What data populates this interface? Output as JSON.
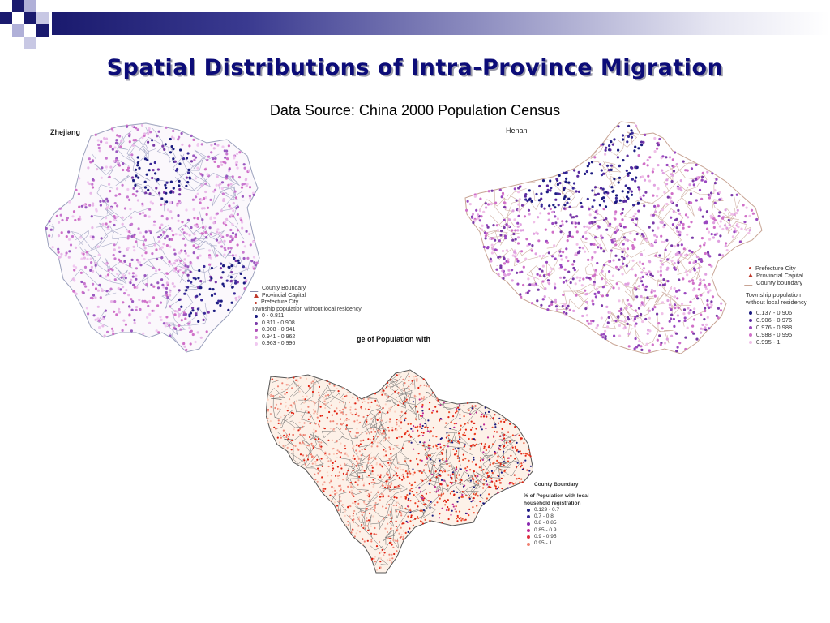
{
  "slide": {
    "title": "Spatial Distributions of Intra-Province Migration",
    "subtitle": "Data Source: China 2000 Population Census",
    "cut_title": "ge of Population with"
  },
  "colors": {
    "title": "#0c0c78",
    "deco_dark": "#1a1a6e",
    "deco_light": "#a8a8d0",
    "dot_dark": "#1b1b80",
    "dot_purple": "#7a3aa8",
    "dot_pink": "#d070c8",
    "dot_light": "#e8b8e8",
    "dot_red": "#e02010",
    "boundary_gray": "#9090b0",
    "boundary_tan": "#c89a88",
    "sichuan_fill": "#fdf1e8"
  },
  "maps": {
    "zhejiang": {
      "name": "Zhejiang",
      "legend": {
        "line_label": "County Boundary",
        "capital_label": "Provincial Capital",
        "city_label": "Prefecture City",
        "heading": "Township population without local residency",
        "classes": [
          "0 - 0.811",
          "0.811 - 0.908",
          "0.908 - 0.941",
          "0.941 - 0.962",
          "0.963 - 0.996"
        ]
      }
    },
    "henan": {
      "name": "Henan",
      "legend": {
        "city_label": "Prefecture City",
        "capital_label": "Provincial Capital",
        "line_label": "County boundary",
        "heading_1": "Township population",
        "heading_2": "without local residency",
        "classes": [
          "0.137 - 0.906",
          "0.906 - 0.976",
          "0.976 - 0.988",
          "0.988 - 0.995",
          "0.995 - 1"
        ]
      }
    },
    "sichuan": {
      "legend": {
        "line_label": "County Boundary",
        "heading_1": "% of Population with local",
        "heading_2": "household registration",
        "classes": [
          "0.129 - 0.7",
          "0.7 - 0.8",
          "0.8 - 0.85",
          "0.85 - 0.9",
          "0.9 - 0.95",
          "0.95 - 1"
        ]
      }
    }
  }
}
